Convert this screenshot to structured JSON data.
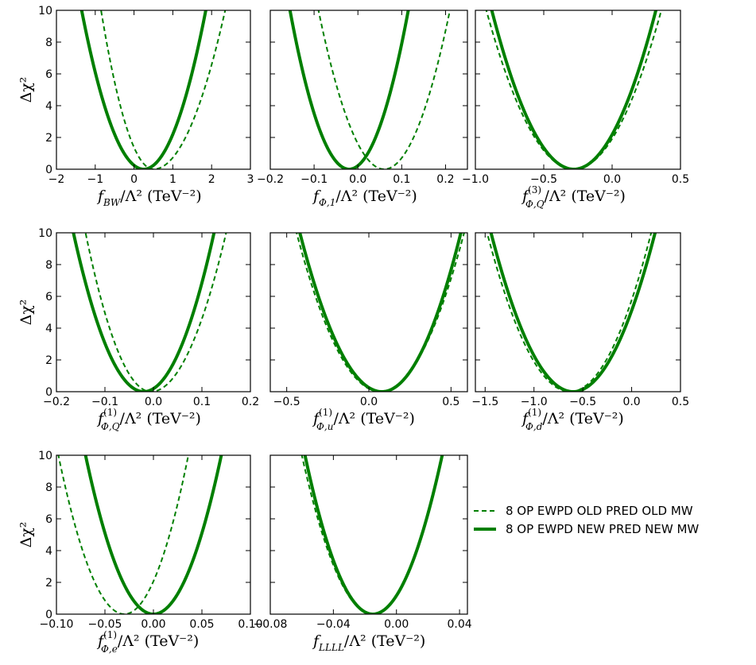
{
  "chart_data": [
    {
      "type": "line",
      "xlabel": "f_{BW}/Λ² (TeV⁻²)",
      "xlabel_main": "f",
      "xlabel_sub": "BW",
      "xlabel_sup": "",
      "xlabel_tail": "/Λ² (TeV⁻²)",
      "ylabel": "Δχ²",
      "xlim": [
        -2,
        3
      ],
      "ylim": [
        0,
        10
      ],
      "xticks": [
        -2,
        -1,
        0,
        1,
        2,
        3
      ],
      "xtick_labels": [
        "−2",
        "−1",
        "0",
        "1",
        "2",
        "3"
      ],
      "yticks": [
        0,
        2,
        4,
        6,
        8,
        10
      ],
      "ytick_labels": [
        "0",
        "2",
        "4",
        "6",
        "8",
        "10"
      ],
      "series": [
        {
          "name": "8 OP EWPD OLD PRED OLD MW",
          "style": "dashed",
          "color": "#007f00",
          "min_x": 0.5,
          "x_at_10": [
            -0.85,
            2.35
          ]
        },
        {
          "name": "8 OP EWPD NEW PRED NEW MW",
          "style": "solid",
          "color": "#007f00",
          "min_x": 0.25,
          "x_at_10": [
            -1.35,
            1.85
          ]
        }
      ]
    },
    {
      "type": "line",
      "xlabel": "f_{Φ,1}/Λ² (TeV⁻²)",
      "xlabel_main": "f",
      "xlabel_sub": "Φ,1",
      "xlabel_sup": "",
      "xlabel_tail": "/Λ² (TeV⁻²)",
      "ylabel": "",
      "xlim": [
        -0.2,
        0.25
      ],
      "ylim": [
        0,
        10
      ],
      "xticks": [
        -0.2,
        -0.1,
        0.0,
        0.1,
        0.2
      ],
      "xtick_labels": [
        "−0.2",
        "−0.1",
        "0.0",
        "0.1",
        "0.2"
      ],
      "yticks": [
        0,
        2,
        4,
        6,
        8,
        10
      ],
      "ytick_labels": [
        "0",
        "2",
        "4",
        "6",
        "8",
        "10"
      ],
      "series": [
        {
          "name": "8 OP EWPD OLD PRED OLD MW",
          "style": "dashed",
          "color": "#007f00",
          "min_x": 0.06,
          "x_at_10": [
            -0.09,
            0.21
          ]
        },
        {
          "name": "8 OP EWPD NEW PRED NEW MW",
          "style": "solid",
          "color": "#007f00",
          "min_x": -0.02,
          "x_at_10": [
            -0.155,
            0.115
          ]
        }
      ]
    },
    {
      "type": "line",
      "xlabel": "f^{(3)}_{Φ,Q}/Λ² (TeV⁻²)",
      "xlabel_main": "f",
      "xlabel_sub": "Φ,Q",
      "xlabel_sup": "(3)",
      "xlabel_tail": "/Λ² (TeV⁻²)",
      "ylabel": "",
      "xlim": [
        -1.0,
        0.5
      ],
      "ylim": [
        0,
        10
      ],
      "xticks": [
        -1.0,
        -0.5,
        0.0,
        0.5
      ],
      "xtick_labels": [
        "−1.0",
        "−0.5",
        "0.0",
        "0.5"
      ],
      "yticks": [
        0,
        2,
        4,
        6,
        8,
        10
      ],
      "ytick_labels": [
        "0",
        "2",
        "4",
        "6",
        "8",
        "10"
      ],
      "series": [
        {
          "name": "8 OP EWPD OLD PRED OLD MW",
          "style": "dashed",
          "color": "#007f00",
          "min_x": -0.28,
          "x_at_10": [
            -0.92,
            0.36
          ]
        },
        {
          "name": "8 OP EWPD NEW PRED NEW MW",
          "style": "solid",
          "color": "#007f00",
          "min_x": -0.28,
          "x_at_10": [
            -0.88,
            0.32
          ]
        }
      ]
    },
    {
      "type": "line",
      "xlabel": "f^{(1)}_{Φ,Q}/Λ² (TeV⁻²)",
      "xlabel_main": "f",
      "xlabel_sub": "Φ,Q",
      "xlabel_sup": "(1)",
      "xlabel_tail": "/Λ² (TeV⁻²)",
      "ylabel": "Δχ²",
      "xlim": [
        -0.2,
        0.2
      ],
      "ylim": [
        0,
        10
      ],
      "xticks": [
        -0.2,
        -0.1,
        0.0,
        0.1,
        0.2
      ],
      "xtick_labels": [
        "−0.2",
        "−0.1",
        "0.0",
        "0.1",
        "0.2"
      ],
      "yticks": [
        0,
        2,
        4,
        6,
        8,
        10
      ],
      "ytick_labels": [
        "0",
        "2",
        "4",
        "6",
        "8",
        "10"
      ],
      "series": [
        {
          "name": "8 OP EWPD OLD PRED OLD MW",
          "style": "dashed",
          "color": "#007f00",
          "min_x": -0.005,
          "x_at_10": [
            -0.14,
            0.15
          ]
        },
        {
          "name": "8 OP EWPD NEW PRED NEW MW",
          "style": "solid",
          "color": "#007f00",
          "min_x": -0.02,
          "x_at_10": [
            -0.165,
            0.125
          ]
        }
      ]
    },
    {
      "type": "line",
      "xlabel": "f^{(1)}_{Φ,u}/Λ² (TeV⁻²)",
      "xlabel_main": "f",
      "xlabel_sub": "Φ,u",
      "xlabel_sup": "(1)",
      "xlabel_tail": "/Λ² (TeV⁻²)",
      "ylabel": "",
      "xlim": [
        -0.6,
        0.6
      ],
      "ylim": [
        0,
        10
      ],
      "xticks": [
        -0.5,
        0.0,
        0.5
      ],
      "xtick_labels": [
        "−0.5",
        "0.0",
        "0.5"
      ],
      "yticks": [
        0,
        2,
        4,
        6,
        8,
        10
      ],
      "ytick_labels": [
        "0",
        "2",
        "4",
        "6",
        "8",
        "10"
      ],
      "series": [
        {
          "name": "8 OP EWPD OLD PRED OLD MW",
          "style": "dashed",
          "color": "#007f00",
          "min_x": 0.07,
          "x_at_10": [
            -0.44,
            0.58
          ]
        },
        {
          "name": "8 OP EWPD NEW PRED NEW MW",
          "style": "solid",
          "color": "#007f00",
          "min_x": 0.08,
          "x_at_10": [
            -0.42,
            0.56
          ]
        }
      ]
    },
    {
      "type": "line",
      "xlabel": "f^{(1)}_{Φ,d}/Λ² (TeV⁻²)",
      "xlabel_main": "f",
      "xlabel_sub": "Φ,d",
      "xlabel_sup": "(1)",
      "xlabel_tail": "/Λ² (TeV⁻²)",
      "ylabel": "",
      "xlim": [
        -1.6,
        0.5
      ],
      "ylim": [
        0,
        10
      ],
      "xticks": [
        -1.5,
        -1.0,
        -0.5,
        0.0,
        0.5
      ],
      "xtick_labels": [
        "−1.5",
        "−1.0",
        "−0.5",
        "0.0",
        "0.5"
      ],
      "yticks": [
        0,
        2,
        4,
        6,
        8,
        10
      ],
      "ytick_labels": [
        "0",
        "2",
        "4",
        "6",
        "8",
        "10"
      ],
      "series": [
        {
          "name": "8 OP EWPD OLD PRED OLD MW",
          "style": "dashed",
          "color": "#007f00",
          "min_x": -0.63,
          "x_at_10": [
            -1.48,
            0.2
          ]
        },
        {
          "name": "8 OP EWPD NEW PRED NEW MW",
          "style": "solid",
          "color": "#007f00",
          "min_x": -0.6,
          "x_at_10": [
            -1.44,
            0.24
          ]
        }
      ]
    },
    {
      "type": "line",
      "xlabel": "f^{(1)}_{Φ,e}/Λ² (TeV⁻²)",
      "xlabel_main": "f",
      "xlabel_sub": "Φ,e",
      "xlabel_sup": "(1)",
      "xlabel_tail": "/Λ² (TeV⁻²)",
      "ylabel": "Δχ²",
      "xlim": [
        -0.1,
        0.1
      ],
      "ylim": [
        0,
        10
      ],
      "xticks": [
        -0.1,
        -0.05,
        0.0,
        0.05,
        0.1
      ],
      "xtick_labels": [
        "−0.10",
        "−0.05",
        "0.00",
        "0.05",
        "0.10"
      ],
      "yticks": [
        0,
        2,
        4,
        6,
        8,
        10
      ],
      "ytick_labels": [
        "0",
        "2",
        "4",
        "6",
        "8",
        "10"
      ],
      "series": [
        {
          "name": "8 OP EWPD OLD PRED OLD MW",
          "style": "dashed",
          "color": "#007f00",
          "min_x": -0.03,
          "x_at_10": [
            -0.098,
            0.036
          ]
        },
        {
          "name": "8 OP EWPD NEW PRED NEW MW",
          "style": "solid",
          "color": "#007f00",
          "min_x": 0.0,
          "x_at_10": [
            -0.07,
            0.07
          ]
        }
      ]
    },
    {
      "type": "line",
      "xlabel": "f_{LLLL}/Λ² (TeV⁻²)",
      "xlabel_main": "f",
      "xlabel_sub": "LLLL",
      "xlabel_sup": "",
      "xlabel_tail": "/Λ² (TeV⁻²)",
      "ylabel": "",
      "xlim": [
        -0.08,
        0.045
      ],
      "ylim": [
        0,
        10
      ],
      "xticks": [
        -0.08,
        -0.04,
        0.0,
        0.04
      ],
      "xtick_labels": [
        "−0.08",
        "−0.04",
        "0.00",
        "0.04"
      ],
      "yticks": [
        0,
        2,
        4,
        6,
        8,
        10
      ],
      "ytick_labels": [
        "0",
        "2",
        "4",
        "6",
        "8",
        "10"
      ],
      "series": [
        {
          "name": "8 OP EWPD OLD PRED OLD MW",
          "style": "dashed",
          "color": "#007f00",
          "min_x": -0.015,
          "x_at_10": [
            -0.06,
            0.029
          ]
        },
        {
          "name": "8 OP EWPD NEW PRED NEW MW",
          "style": "solid",
          "color": "#007f00",
          "min_x": -0.015,
          "x_at_10": [
            -0.058,
            0.029
          ]
        }
      ]
    }
  ],
  "legend": {
    "placement": "right",
    "entries": [
      {
        "label": "8 OP EWPD OLD PRED OLD MW",
        "style": "dashed"
      },
      {
        "label": "8 OP EWPD NEW PRED NEW MW",
        "style": "solid"
      }
    ]
  }
}
